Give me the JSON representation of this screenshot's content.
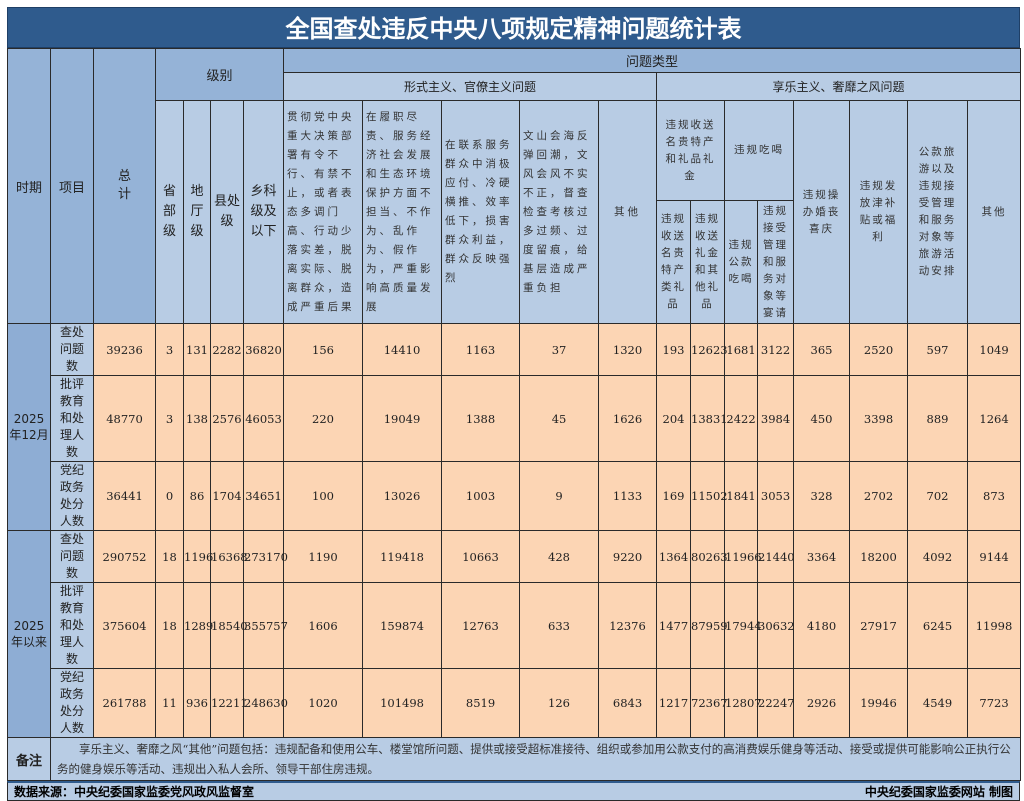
{
  "title": "全国查处违反中央八项规定精神问题统计表",
  "headers": {
    "period": "时期",
    "item": "项目",
    "total": "总计",
    "level": "级别",
    "levels": [
      "省部级",
      "地厅级",
      "县处级",
      "乡科级及以下"
    ],
    "problem_type": "问题类型",
    "formalism": "形式主义、官僚主义问题",
    "formalism_cols": [
      "贯彻党中央重大决策部署有令不行、有禁不止，或者表态多调门高、行动少落实差，脱离实际、脱离群众，造成严重后果",
      "在履职尽责、服务经济社会发展和生态环境保护方面不担当、不作为、乱作为、假作为，严重影响高质量发展",
      "在联系服务群众中消极应付、冷硬横推、效率低下，损害群众利益，群众反映强烈",
      "文山会海反弹回潮，文风会风不实不正，督查检查考核过多过频、过度留痕，给基层造成严重负担",
      "其他"
    ],
    "hedonism": "享乐主义、奢靡之风问题",
    "gifts_group": "违规收送名贵特产和礼品礼金",
    "gifts_cols": [
      "违规收送名贵特产类礼品",
      "违规收送礼金和其他礼品"
    ],
    "dining_group": "违规吃喝",
    "dining_cols": [
      "违规公款吃喝",
      "违规接受管理和服务对象等宴请"
    ],
    "hedonism_cols": [
      "违规操办婚丧喜庆",
      "违规发放津补贴或福利",
      "公款旅游以及违规接受管理和服务对象等旅游活动安排",
      "其他"
    ]
  },
  "periods": [
    {
      "label": "2025年12月",
      "rows": [
        {
          "item": "查处问题数",
          "values": [
            "39236",
            "3",
            "131",
            "2282",
            "36820",
            "156",
            "14410",
            "1163",
            "37",
            "1320",
            "193",
            "12623",
            "1681",
            "3122",
            "365",
            "2520",
            "597",
            "1049"
          ]
        },
        {
          "item": "批评教育和处理人数",
          "values": [
            "48770",
            "3",
            "138",
            "2576",
            "46053",
            "220",
            "19049",
            "1388",
            "45",
            "1626",
            "204",
            "13831",
            "2422",
            "3984",
            "450",
            "3398",
            "889",
            "1264"
          ]
        },
        {
          "item": "党纪政务处分人数",
          "values": [
            "36441",
            "0",
            "86",
            "1704",
            "34651",
            "100",
            "13026",
            "1003",
            "9",
            "1133",
            "169",
            "11502",
            "1841",
            "3053",
            "328",
            "2702",
            "702",
            "873"
          ]
        }
      ]
    },
    {
      "label": "2025年以来",
      "rows": [
        {
          "item": "查处问题数",
          "values": [
            "290752",
            "18",
            "1196",
            "16368",
            "273170",
            "1190",
            "119418",
            "10663",
            "428",
            "9220",
            "1364",
            "80263",
            "11966",
            "21440",
            "3364",
            "18200",
            "4092",
            "9144"
          ]
        },
        {
          "item": "批评教育和处理人数",
          "values": [
            "375604",
            "18",
            "1289",
            "18540",
            "355757",
            "1606",
            "159874",
            "12763",
            "633",
            "12376",
            "1477",
            "87959",
            "17944",
            "30632",
            "4180",
            "27917",
            "6245",
            "11998"
          ]
        },
        {
          "item": "党纪政务处分人数",
          "values": [
            "261788",
            "11",
            "936",
            "12211",
            "248630",
            "1020",
            "101498",
            "8519",
            "126",
            "6843",
            "1217",
            "72367",
            "12807",
            "22247",
            "2926",
            "19946",
            "4549",
            "7723"
          ]
        }
      ]
    }
  ],
  "note": {
    "label": "备注",
    "text": "享乐主义、奢靡之风“其他”问题包括：违规配备和使用公车、楼堂馆所问题、提供或接受超标准接待、组织或参加用公款支付的高消费娱乐健身等活动、接受或提供可能影响公正执行公务的健身娱乐等活动、违规出入私人会所、领导干部住房违规。"
  },
  "footer": {
    "source": "数据来源：中央纪委国家监委党风政风监督室",
    "credit": "中央纪委国家监委网站 制图"
  },
  "colors": {
    "title_bg": "#2f5b8d",
    "header_bg": "#b8cce4",
    "data_bg": "#fcd5b4"
  }
}
